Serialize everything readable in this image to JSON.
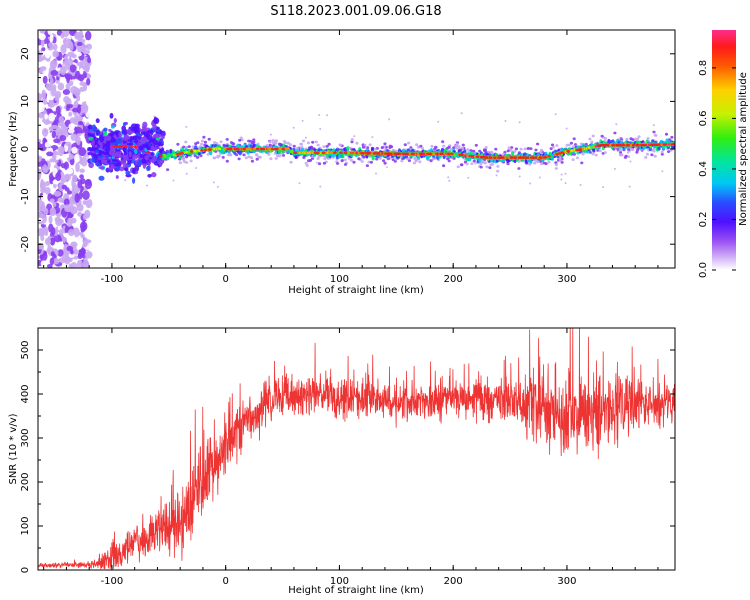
{
  "title": "S118.2023.001.09.06.G18",
  "colors": {
    "snr_line": "#ee3333",
    "colormap": [
      "#ffffff",
      "#c9a8f2",
      "#8a3df0",
      "#4f10ff",
      "#2a4cff",
      "#00c7f5",
      "#00e56e",
      "#64f000",
      "#e8f000",
      "#ff8a00",
      "#ff1a1a",
      "#ff2d8a"
    ]
  },
  "chart_data": [
    {
      "type": "heatmap",
      "xlabel": "Height of straight line (km)",
      "ylabel": "Frequency (Hz)",
      "xlim": [
        -165,
        395
      ],
      "ylim": [
        -25,
        25
      ],
      "xticks": [
        -100,
        0,
        100,
        200,
        300
      ],
      "yticks": [
        -20,
        -10,
        0,
        10,
        20
      ],
      "colorbar": {
        "label": "Normalized spectral amplitude",
        "range": [
          0,
          0.95
        ],
        "ticks": [
          "0.0",
          "0.2",
          "0.4",
          "0.6",
          "0.8"
        ],
        "tick_values": [
          0,
          0.2,
          0.4,
          0.6,
          0.8
        ]
      },
      "ridge": {
        "x": [
          -165,
          -120,
          -100,
          -80,
          -60,
          -45,
          -30,
          -10,
          0,
          30,
          55,
          60,
          100,
          150,
          200,
          215,
          230,
          280,
          300,
          315,
          330,
          360,
          395
        ],
        "freq_hz": [
          0,
          0,
          0.5,
          0.5,
          -1.5,
          -1.2,
          -0.5,
          0,
          0,
          0,
          0,
          -0.8,
          -0.8,
          -1,
          -1,
          -1.5,
          -1.8,
          -1.8,
          -0.5,
          0,
          0.8,
          0.8,
          1
        ]
      }
    },
    {
      "type": "line",
      "xlabel": "Height of straight line (km)",
      "ylabel": "SNR (10 * v/v)",
      "xlim": [
        -165,
        395
      ],
      "ylim": [
        0,
        550
      ],
      "xticks": [
        -100,
        0,
        100,
        200,
        300
      ],
      "yticks": [
        0,
        100,
        200,
        300,
        400,
        500
      ],
      "trend": {
        "x": [
          -165,
          -120,
          -100,
          -80,
          -60,
          -40,
          -20,
          0,
          20,
          40,
          50,
          60,
          100,
          150,
          200,
          250,
          280,
          300,
          320,
          340,
          360,
          395
        ],
        "snr": [
          10,
          12,
          20,
          60,
          90,
          110,
          200,
          280,
          340,
          380,
          395,
          400,
          390,
          380,
          390,
          385,
          370,
          350,
          350,
          365,
          370,
          380
        ]
      },
      "noise": {
        "x": [
          -165,
          -120,
          -100,
          -60,
          -20,
          0,
          40,
          60,
          150,
          240,
          270,
          300,
          340,
          395
        ],
        "amplitude": [
          4,
          6,
          30,
          45,
          80,
          60,
          45,
          45,
          35,
          40,
          70,
          90,
          70,
          40
        ]
      },
      "samples": 2200
    }
  ]
}
